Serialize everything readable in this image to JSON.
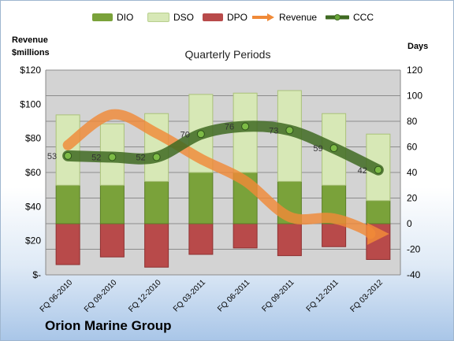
{
  "legend": {
    "dio": "DIO",
    "dso": "DSO",
    "dpo": "DPO",
    "revenue": "Revenue",
    "ccc": "CCC"
  },
  "axes": {
    "left_title_line1": "Revenue",
    "left_title_line2": "$millions",
    "right_title": "Days"
  },
  "title": "Quarterly Periods",
  "company": "Orion Marine Group",
  "colors": {
    "dio": "#7aa23a",
    "dso": "#d7e8b6",
    "dpo": "#b84a4a",
    "revenue": "#f08a38",
    "ccc": "#3f6a22",
    "plot_bg": "#d3d3d3"
  },
  "chart_data": {
    "type": "bar",
    "title": "Quarterly Periods",
    "categories": [
      "FQ 06-2010",
      "FQ 09-2010",
      "FQ 12-2010",
      "FQ 03-2011",
      "FQ 06-2011",
      "FQ 09-2011",
      "FQ 12-2011",
      "FQ 03-2012"
    ],
    "left_axis": {
      "label": "Revenue $millions",
      "ylim": [
        0,
        120
      ],
      "ticks": [
        0,
        20,
        40,
        60,
        80,
        100,
        120
      ],
      "tick_labels": [
        "$-",
        "$20",
        "$40",
        "$60",
        "$80",
        "$100",
        "$120"
      ]
    },
    "right_axis": {
      "label": "Days",
      "ylim": [
        -40,
        120
      ],
      "ticks": [
        -40,
        -20,
        0,
        20,
        40,
        60,
        80,
        100,
        120
      ]
    },
    "series": [
      {
        "name": "DPO",
        "type": "stacked-bar-below-zero",
        "axis": "right",
        "values": [
          32,
          26,
          34,
          24,
          19,
          25,
          18,
          28
        ]
      },
      {
        "name": "DIO",
        "type": "stacked-bar",
        "axis": "right",
        "values": [
          30,
          30,
          33,
          40,
          40,
          33,
          30,
          18
        ]
      },
      {
        "name": "DSO",
        "type": "stacked-bar",
        "axis": "right",
        "values": [
          55,
          48,
          53,
          61,
          62,
          71,
          56,
          52
        ]
      },
      {
        "name": "Revenue",
        "type": "line-arrow",
        "axis": "left",
        "values": [
          76,
          94,
          83,
          68,
          55,
          34,
          33,
          24
        ]
      },
      {
        "name": "CCC",
        "type": "line",
        "axis": "right",
        "values": [
          53,
          52,
          52,
          70,
          76,
          73,
          59,
          42
        ],
        "labels": [
          "53",
          "52",
          "52",
          "70",
          "76",
          "73",
          "59",
          "42"
        ]
      }
    ],
    "grid": true,
    "legend_position": "top"
  }
}
